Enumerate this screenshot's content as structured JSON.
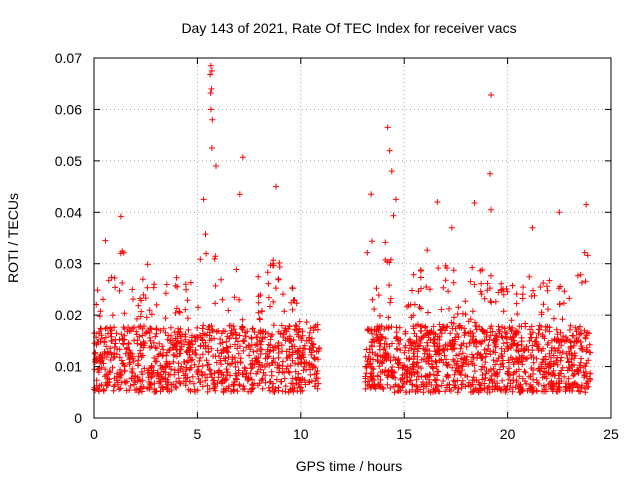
{
  "chart_data": {
    "type": "scatter",
    "title": "Day 143 of 2021, Rate Of TEC Index for receiver vacs",
    "xlabel": "GPS time / hours",
    "ylabel": "ROTI / TECUs",
    "xlim": [
      0,
      25
    ],
    "ylim": [
      0,
      0.07
    ],
    "x_ticks": [
      0,
      5,
      10,
      15,
      20,
      25
    ],
    "x_tick_labels": [
      "0",
      "5",
      "10",
      "15",
      "20",
      "25"
    ],
    "y_ticks": [
      0,
      0.01,
      0.02,
      0.03,
      0.04,
      0.05,
      0.06,
      0.07
    ],
    "y_tick_labels": [
      "0",
      "0.01",
      "0.02",
      "0.03",
      "0.04",
      "0.05",
      "0.06",
      "0.07"
    ],
    "grid": true,
    "marker": "+",
    "color": "#ff0000",
    "data_gap_hours": [
      10.9,
      13.1
    ],
    "notable_points": [
      {
        "x": 5.65,
        "y": 0.0685
      },
      {
        "x": 5.7,
        "y": 0.0675
      },
      {
        "x": 5.62,
        "y": 0.0668
      },
      {
        "x": 5.68,
        "y": 0.064
      },
      {
        "x": 5.64,
        "y": 0.0632
      },
      {
        "x": 5.66,
        "y": 0.06
      },
      {
        "x": 5.72,
        "y": 0.058
      },
      {
        "x": 5.7,
        "y": 0.0525
      },
      {
        "x": 7.2,
        "y": 0.0507
      },
      {
        "x": 5.9,
        "y": 0.049
      },
      {
        "x": 7.05,
        "y": 0.0435
      },
      {
        "x": 8.8,
        "y": 0.045
      },
      {
        "x": 5.3,
        "y": 0.0425
      },
      {
        "x": 1.3,
        "y": 0.0392
      },
      {
        "x": 0.55,
        "y": 0.0345
      },
      {
        "x": 14.2,
        "y": 0.0565
      },
      {
        "x": 14.3,
        "y": 0.052
      },
      {
        "x": 14.4,
        "y": 0.048
      },
      {
        "x": 13.4,
        "y": 0.0435
      },
      {
        "x": 14.6,
        "y": 0.0425
      },
      {
        "x": 16.6,
        "y": 0.042
      },
      {
        "x": 18.4,
        "y": 0.0418
      },
      {
        "x": 19.2,
        "y": 0.0628
      },
      {
        "x": 19.15,
        "y": 0.0475
      },
      {
        "x": 19.2,
        "y": 0.0405
      },
      {
        "x": 22.5,
        "y": 0.04
      },
      {
        "x": 23.8,
        "y": 0.0415
      },
      {
        "x": 21.2,
        "y": 0.037
      },
      {
        "x": 17.3,
        "y": 0.037
      }
    ]
  }
}
